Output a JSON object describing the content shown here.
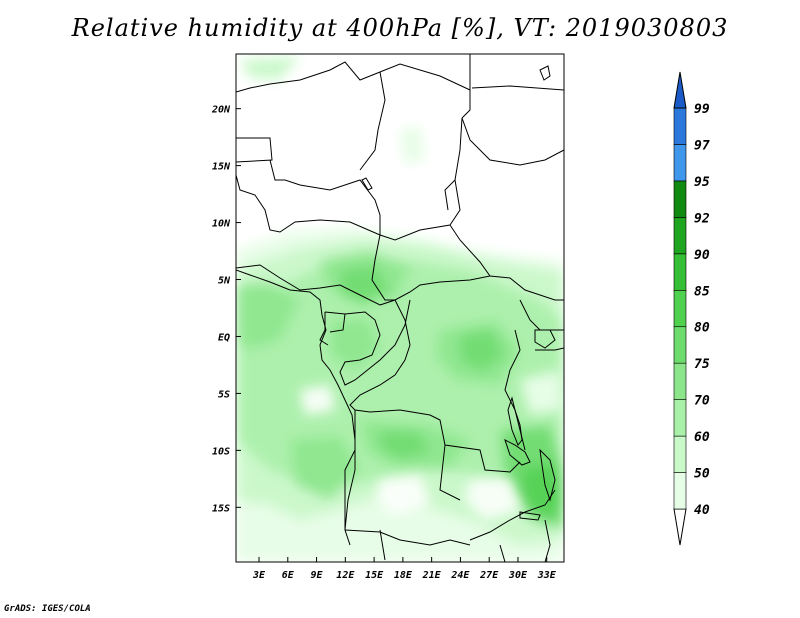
{
  "title": "Relative humidity at 400hPa [%], VT: 2019030803",
  "credit": "GrADS: IGES/COLA",
  "map": {
    "lon_ticks": [
      "3E",
      "6E",
      "9E",
      "12E",
      "15E",
      "18E",
      "21E",
      "24E",
      "27E",
      "30E",
      "33E"
    ],
    "lon_values": [
      3,
      6,
      9,
      12,
      15,
      18,
      21,
      24,
      27,
      30,
      33
    ],
    "lat_ticks": [
      "20N",
      "15N",
      "10N",
      "5N",
      "EQ",
      "5S",
      "10S",
      "15S"
    ],
    "lat_values": [
      20,
      15,
      10,
      5,
      0,
      -5,
      -10,
      -15
    ],
    "lon_range": [
      0.6,
      34.8
    ],
    "lat_range": [
      -19.8,
      24.8
    ]
  },
  "colorbar": {
    "levels": [
      "40",
      "50",
      "60",
      "70",
      "75",
      "80",
      "85",
      "90",
      "92",
      "95",
      "97",
      "99"
    ],
    "colors": [
      "#ffffff",
      "#e6fde6",
      "#c9f8c9",
      "#a9f0a9",
      "#8be68b",
      "#6cdc6c",
      "#4fd04f",
      "#35bf35",
      "#1fa51f",
      "#128a12",
      "#3f96ea",
      "#2a78dc",
      "#1a5bc8"
    ]
  }
}
